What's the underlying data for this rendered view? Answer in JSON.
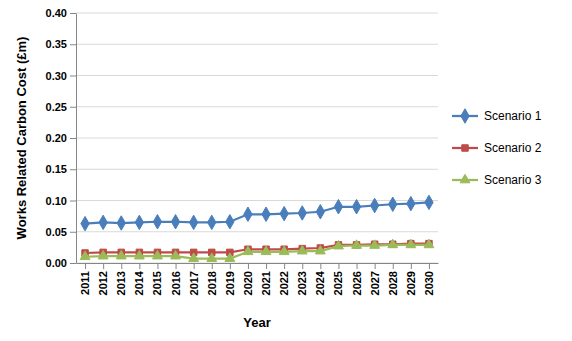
{
  "chart_data": {
    "type": "line",
    "x_label": "Year",
    "y_label": "Works Related Carbon Cost (£m)",
    "categories": [
      "2011",
      "2012",
      "2013",
      "2014",
      "2015",
      "2016",
      "2017",
      "2018",
      "2019",
      "2020",
      "2021",
      "2022",
      "2023",
      "2024",
      "2025",
      "2026",
      "2027",
      "2028",
      "2029",
      "2030"
    ],
    "series": [
      {
        "name": "Scenario 1",
        "color": "#4a7ebb",
        "marker": "diamond",
        "values": [
          0.063,
          0.065,
          0.064,
          0.065,
          0.066,
          0.066,
          0.065,
          0.065,
          0.066,
          0.078,
          0.078,
          0.079,
          0.08,
          0.082,
          0.09,
          0.09,
          0.092,
          0.094,
          0.095,
          0.097
        ]
      },
      {
        "name": "Scenario 2",
        "color": "#be4b48",
        "marker": "square",
        "values": [
          0.016,
          0.017,
          0.017,
          0.017,
          0.017,
          0.017,
          0.017,
          0.017,
          0.017,
          0.022,
          0.022,
          0.022,
          0.023,
          0.024,
          0.029,
          0.029,
          0.03,
          0.03,
          0.031,
          0.031
        ]
      },
      {
        "name": "Scenario 3",
        "color": "#9bbb59",
        "marker": "triangle",
        "values": [
          0.01,
          0.011,
          0.011,
          0.011,
          0.011,
          0.011,
          0.007,
          0.007,
          0.007,
          0.018,
          0.018,
          0.018,
          0.019,
          0.019,
          0.027,
          0.028,
          0.028,
          0.029,
          0.029,
          0.029
        ]
      }
    ],
    "ylim": [
      0,
      0.4
    ],
    "yticks": [
      {
        "value": 0,
        "label": "0.00"
      },
      {
        "value": 0.05,
        "label": "0.05"
      },
      {
        "value": 0.1,
        "label": "0.10"
      },
      {
        "value": 0.15,
        "label": "0.15"
      },
      {
        "value": 0.2,
        "label": "0.20"
      },
      {
        "value": 0.25,
        "label": "0.25"
      },
      {
        "value": 0.3,
        "label": "0.30"
      },
      {
        "value": 0.35,
        "label": "0.35"
      },
      {
        "value": 0.4,
        "label": "0.40"
      }
    ],
    "grid": true,
    "legend": "right"
  }
}
